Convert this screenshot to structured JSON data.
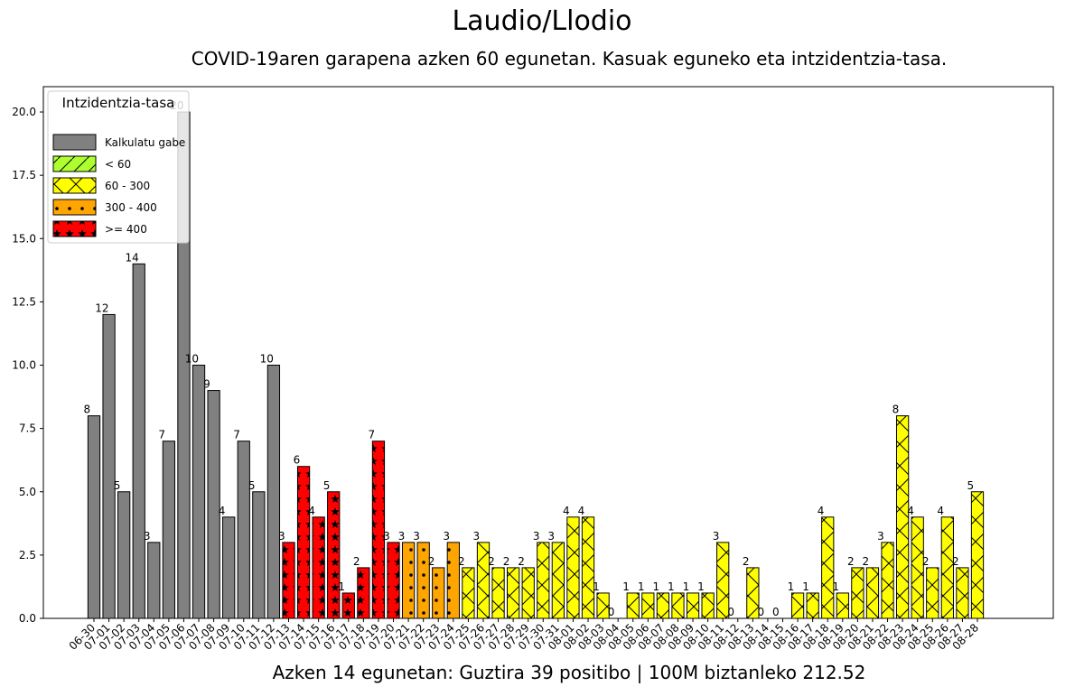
{
  "title": "Laudio/Llodio",
  "subtitle": "COVID-19aren garapena azken 60 egunetan. Kasuak eguneko eta intzidentzia-tasa.",
  "footer": "Azken 14 egunetan: Guztira 39 positibo | 100M biztanleko 212.52",
  "legend": {
    "title": "Intzidentzia-tasa",
    "placement": "top-left",
    "items": [
      {
        "label": "Kalkulatu gabe",
        "category": "none",
        "color": "#808080",
        "hatch": "none"
      },
      {
        "label": "< 60",
        "category": "low",
        "color": "#adff2f",
        "hatch": "slash"
      },
      {
        "label": "60 - 300",
        "category": "mid",
        "color": "#ffff00",
        "hatch": "cross"
      },
      {
        "label": "300 - 400",
        "category": "high",
        "color": "#ffa500",
        "hatch": "dots"
      },
      {
        "label": ">= 400",
        "category": "veryhigh",
        "color": "#ff0000",
        "hatch": "stars"
      }
    ]
  },
  "chart_data": {
    "type": "bar",
    "title": "Laudio/Llodio",
    "subtitle": "COVID-19aren garapena azken 60 egunetan. Kasuak eguneko eta intzidentzia-tasa.",
    "xlabel": "",
    "ylabel": "",
    "ylim": [
      0,
      21
    ],
    "yticks": [
      "0.0",
      "2.5",
      "5.0",
      "7.5",
      "10.0",
      "12.5",
      "15.0",
      "17.5",
      "20.0"
    ],
    "grid": false,
    "categories": [
      "06-30",
      "07-01",
      "07-02",
      "07-03",
      "07-04",
      "07-05",
      "07-06",
      "07-07",
      "07-08",
      "07-09",
      "07-10",
      "07-11",
      "07-12",
      "07-13",
      "07-14",
      "07-15",
      "07-16",
      "07-17",
      "07-18",
      "07-19",
      "07-20",
      "07-21",
      "07-22",
      "07-23",
      "07-24",
      "07-25",
      "07-26",
      "07-27",
      "07-28",
      "07-29",
      "07-30",
      "07-31",
      "08-01",
      "08-02",
      "08-03",
      "08-04",
      "08-05",
      "08-06",
      "08-07",
      "08-08",
      "08-09",
      "08-10",
      "08-11",
      "08-12",
      "08-13",
      "08-14",
      "08-15",
      "08-16",
      "08-17",
      "08-18",
      "08-19",
      "08-20",
      "08-21",
      "08-22",
      "08-23",
      "08-24",
      "08-25",
      "08-26",
      "08-27",
      "08-28"
    ],
    "values": [
      8,
      12,
      5,
      14,
      3,
      7,
      20,
      10,
      9,
      4,
      7,
      5,
      10,
      3,
      6,
      4,
      5,
      1,
      2,
      7,
      3,
      3,
      3,
      2,
      3,
      2,
      3,
      2,
      2,
      2,
      3,
      3,
      4,
      4,
      1,
      0,
      1,
      1,
      1,
      1,
      1,
      1,
      3,
      0,
      2,
      0,
      0,
      1,
      1,
      4,
      1,
      2,
      2,
      3,
      8,
      4,
      2,
      4,
      2,
      5
    ],
    "incidence_category": [
      "none",
      "none",
      "none",
      "none",
      "none",
      "none",
      "none",
      "none",
      "none",
      "none",
      "none",
      "none",
      "none",
      "veryhigh",
      "veryhigh",
      "veryhigh",
      "veryhigh",
      "veryhigh",
      "veryhigh",
      "veryhigh",
      "veryhigh",
      "high",
      "high",
      "high",
      "high",
      "mid",
      "mid",
      "mid",
      "mid",
      "mid",
      "mid",
      "mid",
      "mid",
      "mid",
      "mid",
      "mid",
      "mid",
      "mid",
      "mid",
      "mid",
      "mid",
      "mid",
      "mid",
      "mid",
      "mid",
      "mid",
      "mid",
      "mid",
      "mid",
      "mid",
      "mid",
      "mid",
      "mid",
      "mid",
      "mid",
      "mid",
      "mid",
      "mid",
      "mid",
      "mid"
    ]
  }
}
